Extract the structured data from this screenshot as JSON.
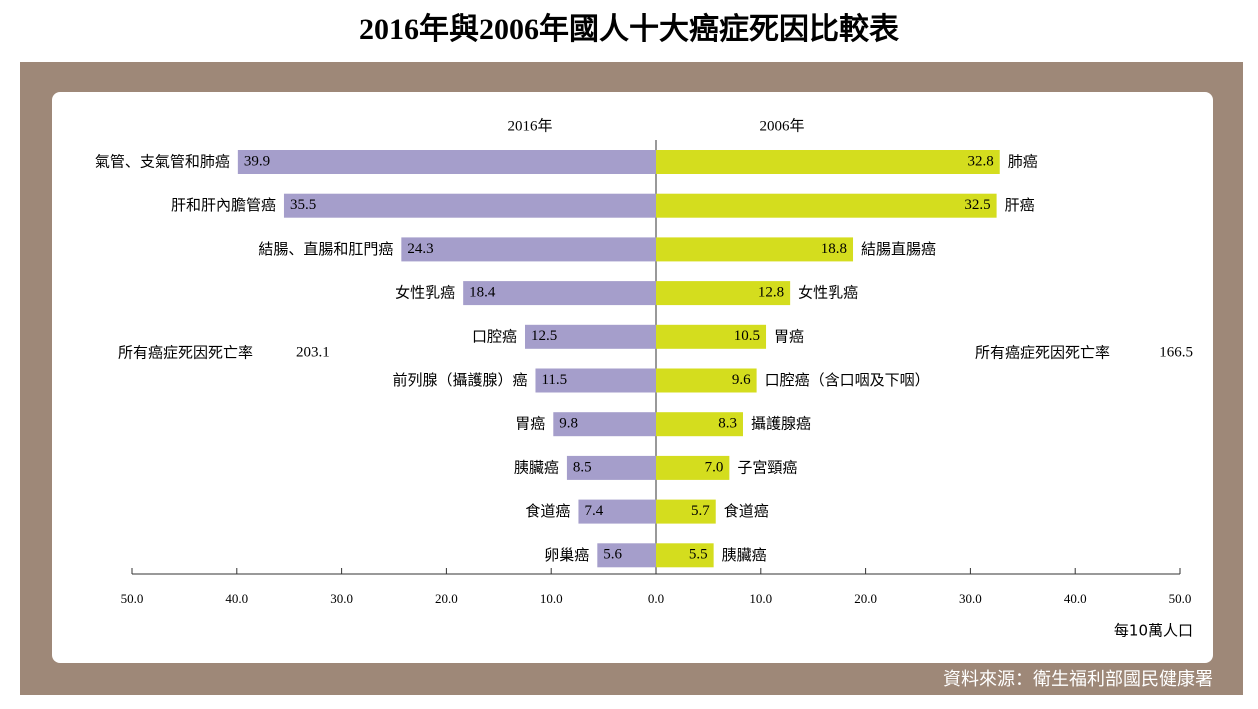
{
  "title": "2016年與2006年國人十大癌症死因比較表",
  "source": "資料來源：衛生福利部國民健康署",
  "chart_data": [
    {
      "type": "bar",
      "orientation": "horizontal",
      "reversed": true,
      "series": [
        {
          "name": "2016年",
          "color": "#a59ecb",
          "categories": [
            "氣管、支氣管和肺癌",
            "肝和肝內膽管癌",
            "結腸、直腸和肛門癌",
            "女性乳癌",
            "口腔癌",
            "前列腺（攝護腺）癌",
            "胃癌",
            "胰臟癌",
            "食道癌",
            "卵巢癌"
          ],
          "values": [
            39.9,
            35.5,
            24.3,
            18.4,
            12.5,
            11.5,
            9.8,
            8.5,
            7.4,
            5.6
          ]
        }
      ],
      "total_label": "所有癌症死因死亡率",
      "total": 203.1,
      "xlim": [
        0,
        50
      ],
      "xticks": [
        {
          "value": 50,
          "label": "50.0"
        },
        {
          "value": 40,
          "label": "40.0"
        },
        {
          "value": 30,
          "label": "30.0"
        },
        {
          "value": 20,
          "label": "20.0"
        },
        {
          "value": 10,
          "label": "10.0"
        }
      ]
    },
    {
      "type": "bar",
      "orientation": "horizontal",
      "reversed": false,
      "series": [
        {
          "name": "2006年",
          "color": "#d4dd1e",
          "categories": [
            "肺癌",
            "肝癌",
            "結腸直腸癌",
            "女性乳癌",
            "胃癌",
            "口腔癌（含口咽及下咽）",
            "攝護腺癌",
            "子宮頸癌",
            "食道癌",
            "胰臟癌"
          ],
          "values": [
            32.8,
            32.5,
            18.8,
            12.8,
            10.5,
            9.6,
            8.3,
            7.0,
            5.7,
            5.5
          ],
          "value_labels": [
            "32.8",
            "32.5",
            "18.8",
            "12.8",
            "10.5",
            "9.6",
            "8.3",
            "7.0",
            "5.7",
            "5.5"
          ]
        }
      ],
      "total_label": "所有癌症死因死亡率",
      "total": 166.5,
      "xlim": [
        0,
        50
      ],
      "xticks": [
        {
          "value": 0,
          "label": "0.0"
        },
        {
          "value": 10,
          "label": "10.0"
        },
        {
          "value": 20,
          "label": "20.0"
        },
        {
          "value": 30,
          "label": "30.0"
        },
        {
          "value": 40,
          "label": "40.0"
        },
        {
          "value": 50,
          "label": "50.0"
        }
      ],
      "xlabel": "每10萬人口"
    }
  ]
}
